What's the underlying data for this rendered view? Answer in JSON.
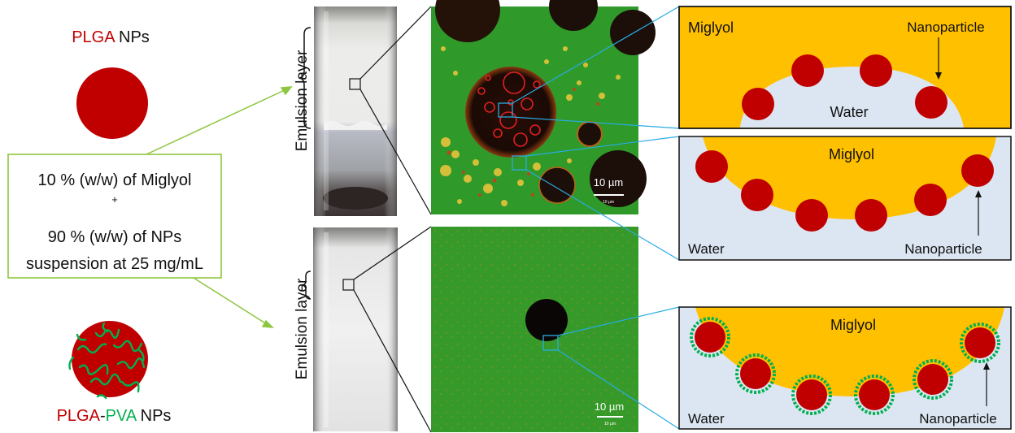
{
  "left": {
    "top_label": {
      "part1": "PLGA",
      "part2": " NPs"
    },
    "bottom_label": {
      "part1": "PLGA",
      "part2": "-",
      "part3": "PVA",
      "part4": " NPs"
    },
    "recipe": {
      "line1": "10 % (w/w) of Miglyol",
      "line2": "+",
      "line3": "90 % (w/w) of NPs",
      "line4": "suspension at 25 mg/mL"
    }
  },
  "vials": {
    "top_label": "Emulsion layer",
    "bottom_label": "Emulsion layer"
  },
  "micrographs": {
    "top_scale": "10 µm",
    "top_scale_small": "10 µm",
    "bottom_scale": "10 µm",
    "bottom_scale_small": "10 µm"
  },
  "schematics": {
    "panel1": {
      "oil": "Miglyol",
      "water": "Water",
      "particle": "Nanoparticle"
    },
    "panel2": {
      "oil": "Miglyol",
      "water": "Water",
      "particle": "Nanoparticle"
    },
    "panel3": {
      "oil": "Miglyol",
      "water": "Water",
      "particle": "Nanoparticle"
    }
  },
  "colors": {
    "plga_red": "#C00000",
    "pva_green": "#00B050",
    "miglyol_orange": "#FFC000",
    "water_blue": "#DCE6F2",
    "arrow_green": "#8DC63F",
    "zoom_blue": "#29ABE2",
    "micro_green": "#1F8A1F"
  }
}
